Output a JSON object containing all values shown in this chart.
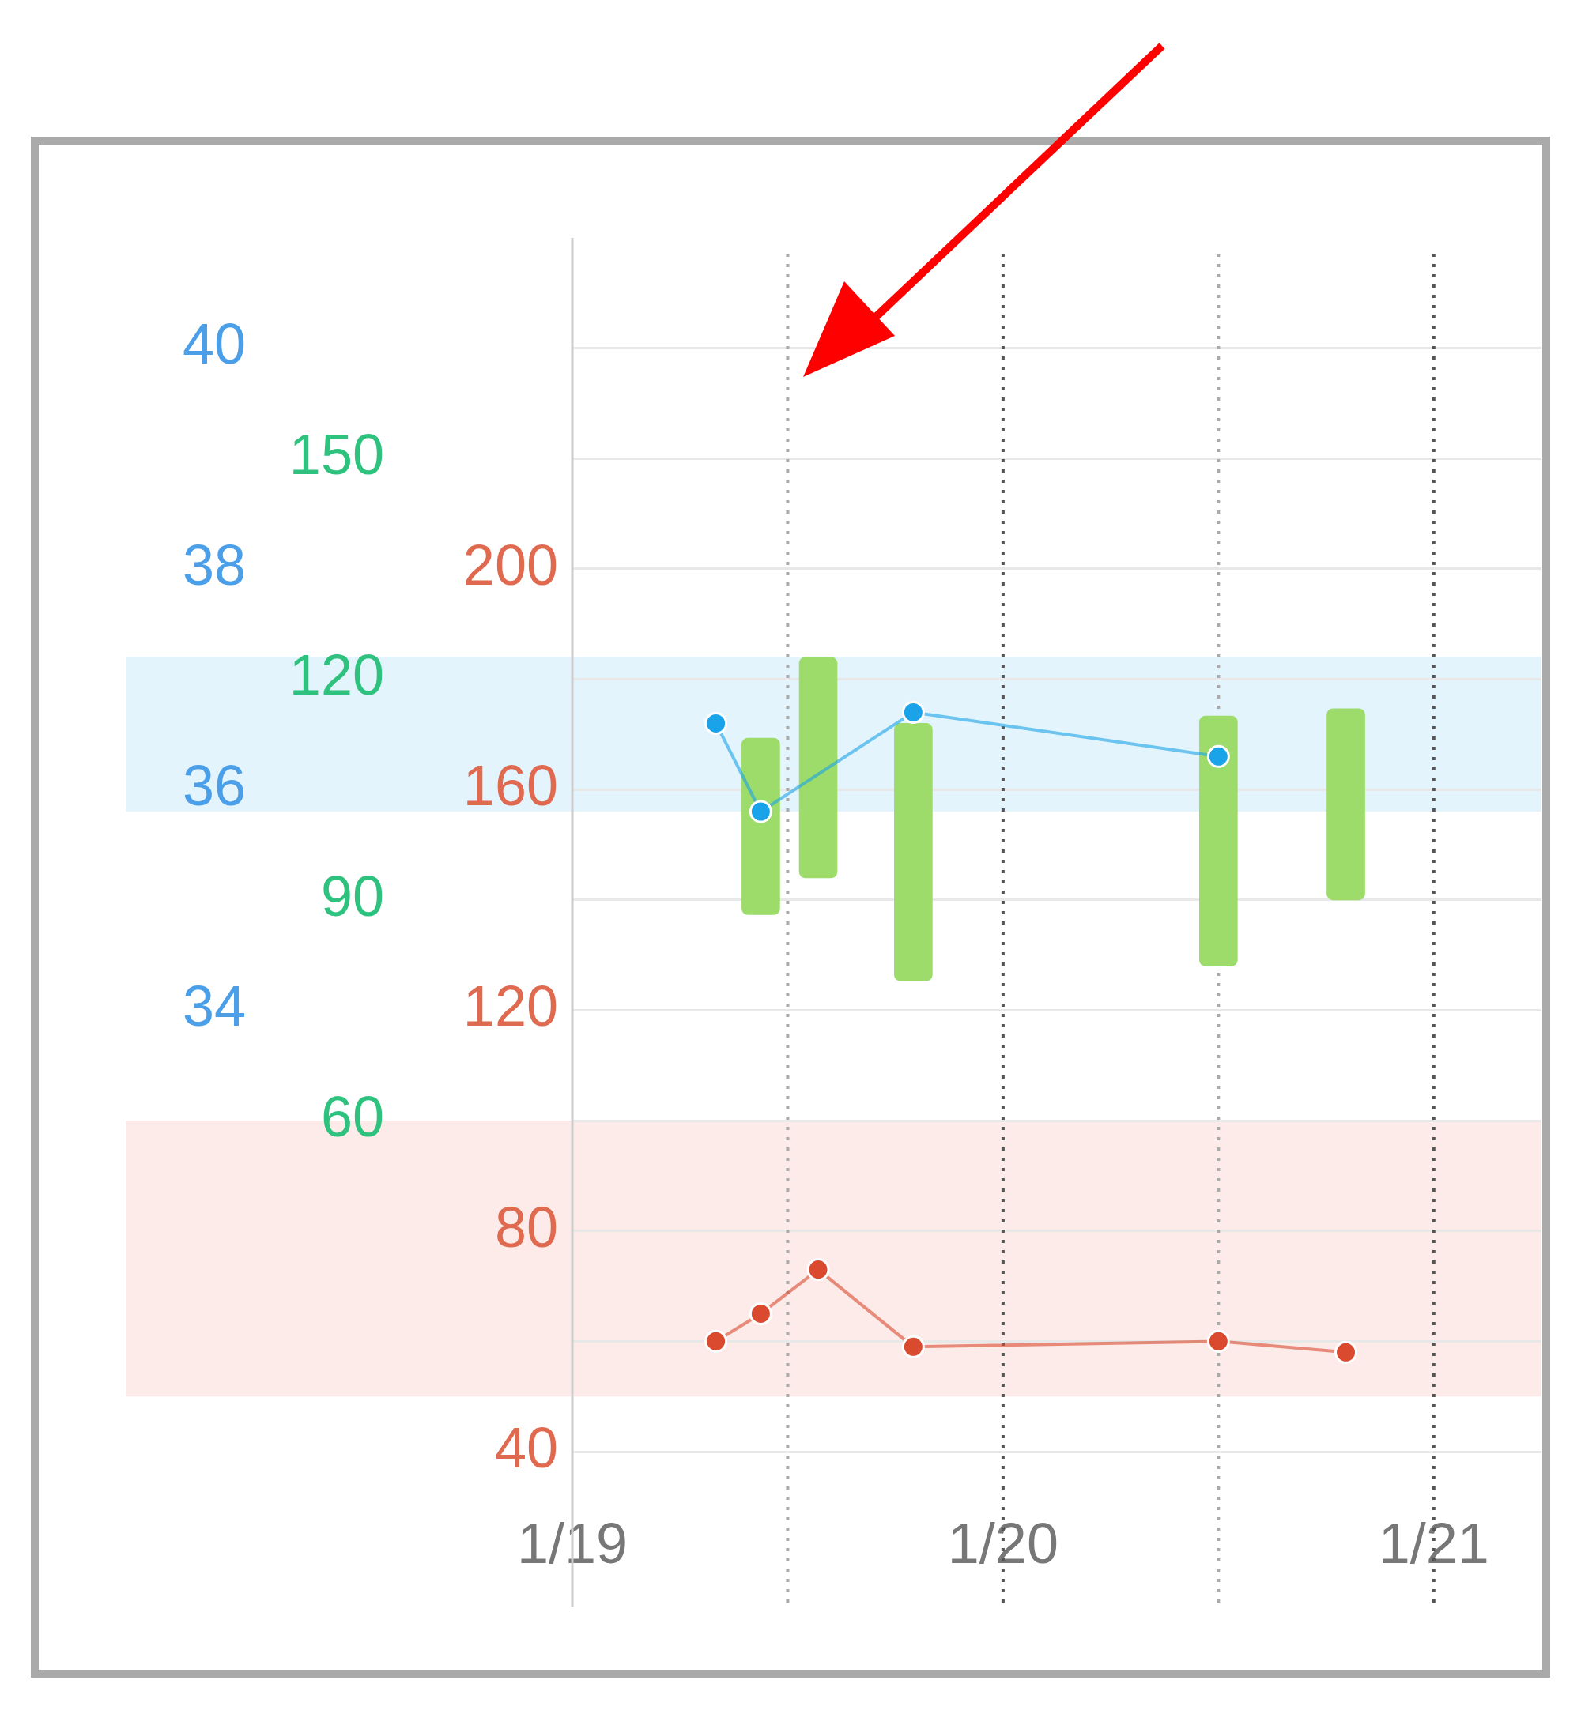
{
  "chart_data": {
    "type": "line",
    "xlim": [
      "--01-19",
      "--01-21T06:00"
    ],
    "xticks": [
      {
        "value": "--01-19",
        "label": "1/19"
      },
      {
        "value": "--01-19T12:00",
        "label": null
      },
      {
        "value": "--01-20",
        "label": "1/20"
      },
      {
        "value": "--01-20T12:00",
        "label": null
      },
      {
        "value": "--01-21",
        "label": "1/21"
      }
    ],
    "ylim": [
      30,
      41
    ],
    "yticks": [
      34,
      36,
      38,
      40
    ],
    "y2lim": [
      15,
      180
    ],
    "y2ticks": [
      60,
      90,
      120,
      150
    ],
    "y3lim": [
      40,
      260
    ],
    "y3ticks": [
      40,
      {
        "value": 60,
        "label": null
      },
      80,
      120,
      160,
      200
    ],
    "grid": true,
    "legend": false,
    "marker": "circle",
    "line_style": "solid",
    "bands": [
      {
        "axis": "y",
        "from": 35.8,
        "to": 37.2,
        "color": "#e3f4fc"
      },
      {
        "axis": "y3",
        "from": 50,
        "to": 100,
        "color": "#fcebe8"
      }
    ],
    "series": [
      {
        "type": "bar",
        "axis": "y2",
        "color": "#9ddb6a",
        "x": [
          "--01-19T10:30",
          "--01-19T13:42",
          "--01-19T19:00",
          "--01-20T12:00",
          "--01-20T19:06"
        ],
        "base": [
          88,
          93,
          79,
          81,
          90
        ],
        "values": [
          24,
          30,
          35,
          34,
          26
        ]
      },
      {
        "axis": "y3",
        "color": "#d94a2e",
        "x": [
          "--01-19T08:00",
          "--01-19T10:30",
          "--01-19T13:42",
          "--01-19T19:00",
          "--01-20T12:00",
          "--01-20T19:06"
        ],
        "values": [
          60,
          65,
          73,
          59,
          60,
          58
        ]
      },
      {
        "axis": "y",
        "color": "#1aa3e8",
        "x": [
          "--01-19T08:00",
          "--01-19T10:30",
          "--01-19T19:00",
          "--01-20T12:00"
        ],
        "values": [
          36.6,
          35.8,
          36.7,
          36.3
        ]
      }
    ]
  }
}
